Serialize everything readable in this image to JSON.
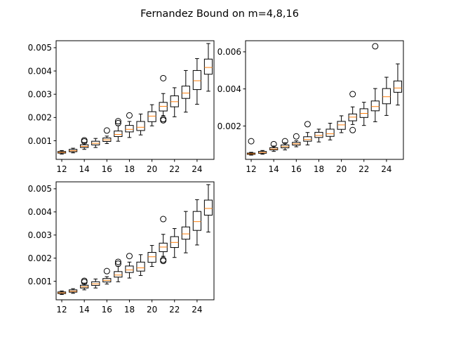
{
  "title": "Fernandez Bound on m=4,8,16",
  "colors": {
    "box": "#000000",
    "median": "#ff7f0e",
    "flier": "#000000",
    "background": "#ffffff"
  },
  "chart_data": [
    {
      "type": "box",
      "panel": "top-left",
      "xlim": [
        11.5,
        25.5
      ],
      "ylim": [
        0.0002,
        0.0053
      ],
      "xticks": [
        12,
        14,
        16,
        18,
        20,
        22,
        24
      ],
      "xtick_labels": [
        "12",
        "14",
        "16",
        "18",
        "20",
        "22",
        "24"
      ],
      "yticks": [
        0.001,
        0.002,
        0.003,
        0.004,
        0.005
      ],
      "ytick_labels": [
        "0.001",
        "0.002",
        "0.003",
        "0.004",
        "0.005"
      ],
      "boxes": [
        {
          "x": 12,
          "whislo": 0.00043,
          "q1": 0.00047,
          "med": 0.0005,
          "q3": 0.00054,
          "whishi": 0.00058,
          "fliers": []
        },
        {
          "x": 13,
          "whislo": 0.00048,
          "q1": 0.00053,
          "med": 0.00057,
          "q3": 0.00063,
          "whishi": 0.00068,
          "fliers": []
        },
        {
          "x": 14,
          "whislo": 0.00063,
          "q1": 0.00071,
          "med": 0.00076,
          "q3": 0.00083,
          "whishi": 0.00092,
          "fliers": [
            0.00097,
            0.00102
          ]
        },
        {
          "x": 15,
          "whislo": 0.00071,
          "q1": 0.00082,
          "med": 0.00089,
          "q3": 0.00098,
          "whishi": 0.0011,
          "fliers": []
        },
        {
          "x": 16,
          "whislo": 0.00088,
          "q1": 0.00097,
          "med": 0.00104,
          "q3": 0.00112,
          "whishi": 0.0012,
          "fliers": [
            0.00144
          ]
        },
        {
          "x": 17,
          "whislo": 0.00098,
          "q1": 0.00118,
          "med": 0.00127,
          "q3": 0.00142,
          "whishi": 0.00165,
          "fliers": [
            0.00176,
            0.00184
          ]
        },
        {
          "x": 18,
          "whislo": 0.00114,
          "q1": 0.00138,
          "med": 0.00149,
          "q3": 0.00166,
          "whishi": 0.00183,
          "fliers": [
            0.00209
          ]
        },
        {
          "x": 19,
          "whislo": 0.00125,
          "q1": 0.00144,
          "med": 0.00158,
          "q3": 0.00183,
          "whishi": 0.00215,
          "fliers": []
        },
        {
          "x": 20,
          "whislo": 0.00164,
          "q1": 0.00182,
          "med": 0.00206,
          "q3": 0.00225,
          "whishi": 0.00255,
          "fliers": []
        },
        {
          "x": 21,
          "whislo": 0.00208,
          "q1": 0.00228,
          "med": 0.00248,
          "q3": 0.00265,
          "whishi": 0.00303,
          "fliers": [
            0.00369,
            0.00193,
            0.00188
          ]
        },
        {
          "x": 22,
          "whislo": 0.00203,
          "q1": 0.00246,
          "med": 0.00268,
          "q3": 0.00293,
          "whishi": 0.00328,
          "fliers": []
        },
        {
          "x": 23,
          "whislo": 0.00223,
          "q1": 0.00282,
          "med": 0.00305,
          "q3": 0.00335,
          "whishi": 0.00402,
          "fliers": []
        },
        {
          "x": 24,
          "whislo": 0.00257,
          "q1": 0.0032,
          "med": 0.00358,
          "q3": 0.00402,
          "whishi": 0.00453,
          "fliers": []
        },
        {
          "x": 25,
          "whislo": 0.00313,
          "q1": 0.00386,
          "med": 0.00415,
          "q3": 0.00451,
          "whishi": 0.00518,
          "fliers": []
        }
      ]
    },
    {
      "type": "box",
      "panel": "top-right",
      "xlim": [
        11.5,
        25.5
      ],
      "ylim": [
        0.0002,
        0.0066
      ],
      "xticks": [
        12,
        14,
        16,
        18,
        20,
        22,
        24
      ],
      "xtick_labels": [
        "12",
        "14",
        "16",
        "18",
        "20",
        "22",
        "24"
      ],
      "yticks": [
        0.002,
        0.004,
        0.006
      ],
      "ytick_labels": [
        "0.002",
        "0.004",
        "0.006"
      ],
      "boxes": [
        {
          "x": 12,
          "whislo": 0.00043,
          "q1": 0.00047,
          "med": 0.0005,
          "q3": 0.00054,
          "whishi": 0.00058,
          "fliers": [
            0.00118
          ]
        },
        {
          "x": 13,
          "whislo": 0.00048,
          "q1": 0.00053,
          "med": 0.00057,
          "q3": 0.00063,
          "whishi": 0.00068,
          "fliers": []
        },
        {
          "x": 14,
          "whislo": 0.00063,
          "q1": 0.00071,
          "med": 0.00076,
          "q3": 0.00083,
          "whishi": 0.00092,
          "fliers": [
            0.00102
          ]
        },
        {
          "x": 15,
          "whislo": 0.00071,
          "q1": 0.00082,
          "med": 0.00089,
          "q3": 0.00098,
          "whishi": 0.0011,
          "fliers": [
            0.00118
          ]
        },
        {
          "x": 16,
          "whislo": 0.00088,
          "q1": 0.00097,
          "med": 0.00104,
          "q3": 0.00112,
          "whishi": 0.0012,
          "fliers": [
            0.00144
          ]
        },
        {
          "x": 17,
          "whislo": 0.00098,
          "q1": 0.00118,
          "med": 0.00127,
          "q3": 0.00142,
          "whishi": 0.00165,
          "fliers": [
            0.0021
          ]
        },
        {
          "x": 18,
          "whislo": 0.00114,
          "q1": 0.00138,
          "med": 0.00149,
          "q3": 0.00166,
          "whishi": 0.00183,
          "fliers": []
        },
        {
          "x": 19,
          "whislo": 0.00125,
          "q1": 0.00144,
          "med": 0.00158,
          "q3": 0.00183,
          "whishi": 0.00215,
          "fliers": []
        },
        {
          "x": 20,
          "whislo": 0.00164,
          "q1": 0.00182,
          "med": 0.00206,
          "q3": 0.00225,
          "whishi": 0.00255,
          "fliers": []
        },
        {
          "x": 21,
          "whislo": 0.00208,
          "q1": 0.00228,
          "med": 0.00248,
          "q3": 0.00265,
          "whishi": 0.00303,
          "fliers": [
            0.00372,
            0.00178
          ]
        },
        {
          "x": 22,
          "whislo": 0.00203,
          "q1": 0.00246,
          "med": 0.00268,
          "q3": 0.00293,
          "whishi": 0.00328,
          "fliers": []
        },
        {
          "x": 23,
          "whislo": 0.00223,
          "q1": 0.00282,
          "med": 0.00305,
          "q3": 0.00335,
          "whishi": 0.00402,
          "fliers": [
            0.0063
          ]
        },
        {
          "x": 24,
          "whislo": 0.00257,
          "q1": 0.0032,
          "med": 0.00358,
          "q3": 0.00402,
          "whishi": 0.00463,
          "fliers": []
        },
        {
          "x": 25,
          "whislo": 0.00313,
          "q1": 0.00382,
          "med": 0.00405,
          "q3": 0.00443,
          "whishi": 0.00535,
          "fliers": []
        }
      ]
    },
    {
      "type": "box",
      "panel": "bottom-left",
      "xlim": [
        11.5,
        25.5
      ],
      "ylim": [
        0.0002,
        0.0053
      ],
      "xticks": [
        12,
        14,
        16,
        18,
        20,
        22,
        24
      ],
      "xtick_labels": [
        "12",
        "14",
        "16",
        "18",
        "20",
        "22",
        "24"
      ],
      "yticks": [
        0.001,
        0.002,
        0.003,
        0.004,
        0.005
      ],
      "ytick_labels": [
        "0.001",
        "0.002",
        "0.003",
        "0.004",
        "0.005"
      ],
      "boxes": [
        {
          "x": 12,
          "whislo": 0.00043,
          "q1": 0.00047,
          "med": 0.0005,
          "q3": 0.00054,
          "whishi": 0.00058,
          "fliers": []
        },
        {
          "x": 13,
          "whislo": 0.00048,
          "q1": 0.00053,
          "med": 0.00057,
          "q3": 0.00063,
          "whishi": 0.00068,
          "fliers": []
        },
        {
          "x": 14,
          "whislo": 0.00063,
          "q1": 0.00071,
          "med": 0.00076,
          "q3": 0.00083,
          "whishi": 0.00092,
          "fliers": [
            0.00097,
            0.00102
          ]
        },
        {
          "x": 15,
          "whislo": 0.00071,
          "q1": 0.00082,
          "med": 0.00089,
          "q3": 0.00098,
          "whishi": 0.0011,
          "fliers": []
        },
        {
          "x": 16,
          "whislo": 0.00088,
          "q1": 0.00097,
          "med": 0.00104,
          "q3": 0.00112,
          "whishi": 0.0012,
          "fliers": [
            0.00144
          ]
        },
        {
          "x": 17,
          "whislo": 0.00098,
          "q1": 0.00118,
          "med": 0.00127,
          "q3": 0.00142,
          "whishi": 0.00165,
          "fliers": [
            0.00176,
            0.00184
          ]
        },
        {
          "x": 18,
          "whislo": 0.00114,
          "q1": 0.00138,
          "med": 0.00149,
          "q3": 0.00166,
          "whishi": 0.00183,
          "fliers": [
            0.00209
          ]
        },
        {
          "x": 19,
          "whislo": 0.00125,
          "q1": 0.00144,
          "med": 0.00158,
          "q3": 0.00183,
          "whishi": 0.00215,
          "fliers": []
        },
        {
          "x": 20,
          "whislo": 0.00164,
          "q1": 0.00182,
          "med": 0.00206,
          "q3": 0.00225,
          "whishi": 0.00255,
          "fliers": []
        },
        {
          "x": 21,
          "whislo": 0.00208,
          "q1": 0.00228,
          "med": 0.00248,
          "q3": 0.00265,
          "whishi": 0.00303,
          "fliers": [
            0.00369,
            0.00193,
            0.00188
          ]
        },
        {
          "x": 22,
          "whislo": 0.00203,
          "q1": 0.00246,
          "med": 0.00268,
          "q3": 0.00293,
          "whishi": 0.00328,
          "fliers": []
        },
        {
          "x": 23,
          "whislo": 0.00223,
          "q1": 0.00282,
          "med": 0.00305,
          "q3": 0.00335,
          "whishi": 0.00402,
          "fliers": []
        },
        {
          "x": 24,
          "whislo": 0.00257,
          "q1": 0.0032,
          "med": 0.00358,
          "q3": 0.00402,
          "whishi": 0.00453,
          "fliers": []
        },
        {
          "x": 25,
          "whislo": 0.00313,
          "q1": 0.00386,
          "med": 0.00415,
          "q3": 0.00451,
          "whishi": 0.00518,
          "fliers": []
        }
      ]
    }
  ]
}
